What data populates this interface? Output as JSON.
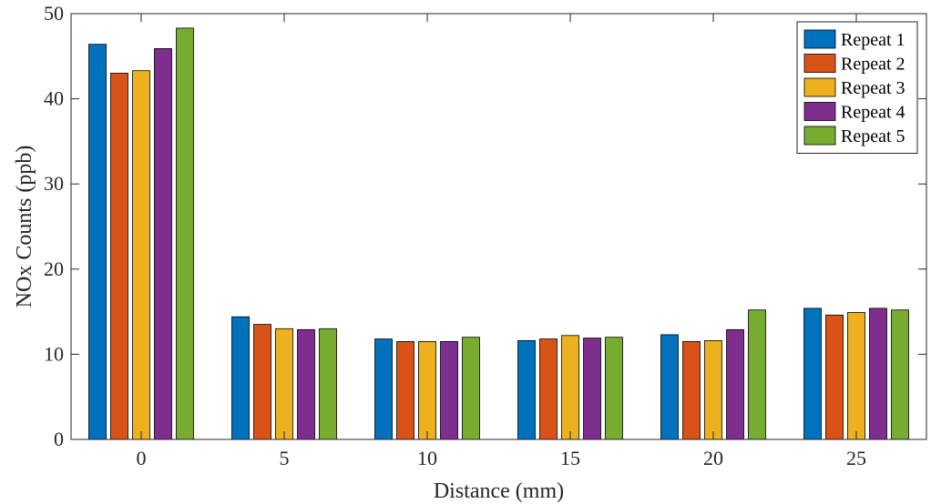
{
  "chart_data": {
    "type": "bar",
    "title": "",
    "xlabel": "Distance (mm)",
    "ylabel": "NOx Counts (ppb)",
    "categories": [
      "0",
      "5",
      "10",
      "15",
      "20",
      "25"
    ],
    "ylim": [
      0,
      50
    ],
    "yticks": [
      0,
      10,
      20,
      30,
      40,
      50
    ],
    "grid": false,
    "legend_position": "top-right",
    "series": [
      {
        "name": "Repeat 1",
        "color": "#0072BD",
        "values": [
          46.4,
          14.4,
          11.8,
          11.6,
          12.3,
          15.4
        ]
      },
      {
        "name": "Repeat 2",
        "color": "#D95319",
        "values": [
          43.0,
          13.5,
          11.5,
          11.8,
          11.5,
          14.6
        ]
      },
      {
        "name": "Repeat 3",
        "color": "#EDB120",
        "values": [
          43.3,
          13.0,
          11.5,
          12.2,
          11.6,
          14.9
        ]
      },
      {
        "name": "Repeat 4",
        "color": "#7E2F8E",
        "values": [
          45.9,
          12.9,
          11.5,
          11.9,
          12.9,
          15.4
        ]
      },
      {
        "name": "Repeat 5",
        "color": "#77AC30",
        "values": [
          48.3,
          13.0,
          12.0,
          12.0,
          15.2,
          15.2
        ]
      }
    ]
  }
}
